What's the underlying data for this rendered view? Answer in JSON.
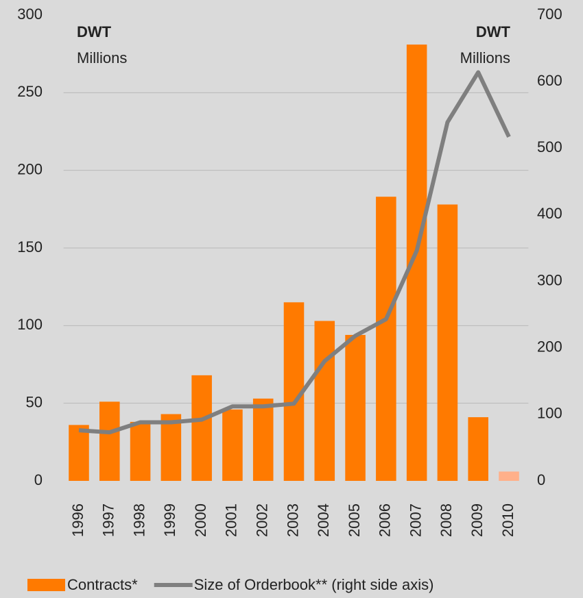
{
  "chart_data": {
    "type": "bar_line",
    "categories": [
      "1996",
      "1997",
      "1998",
      "1999",
      "2000",
      "2001",
      "2002",
      "2003",
      "2004",
      "2005",
      "2006",
      "2007",
      "2008",
      "2009",
      "2010"
    ],
    "series": [
      {
        "name": "Contracts*",
        "type": "bar",
        "color": "#ff7a00",
        "bar_colors": [
          "#ff7a00",
          "#ff7a00",
          "#ff7a00",
          "#ff7a00",
          "#ff7a00",
          "#ff7a00",
          "#ff7a00",
          "#ff7a00",
          "#ff7a00",
          "#ff7a00",
          "#ff7a00",
          "#ff7a00",
          "#ff7a00",
          "#ff7a00",
          "#ffb08a"
        ],
        "values": [
          36,
          51,
          38,
          43,
          68,
          46,
          53,
          115,
          103,
          94,
          183,
          281,
          178,
          41,
          6
        ]
      },
      {
        "name": "Size of Orderbook** (right side axis)",
        "type": "line",
        "axis": "y2",
        "color": "#7f7f7f",
        "values": [
          76,
          73,
          88,
          88,
          92,
          112,
          112,
          116,
          180,
          218,
          243,
          346,
          539,
          614,
          517
        ]
      }
    ],
    "ylim": [
      0,
      300
    ],
    "yticks": [
      0,
      50,
      100,
      150,
      200,
      250,
      300
    ],
    "y2lim": [
      0,
      700
    ],
    "y2ticks": [
      0,
      100,
      200,
      300,
      400,
      500,
      600,
      700
    ],
    "grid": true,
    "annotations": {
      "left_unit": "DWT",
      "left_scale": "Millions",
      "right_unit": "DWT",
      "right_scale": "Millions"
    }
  }
}
